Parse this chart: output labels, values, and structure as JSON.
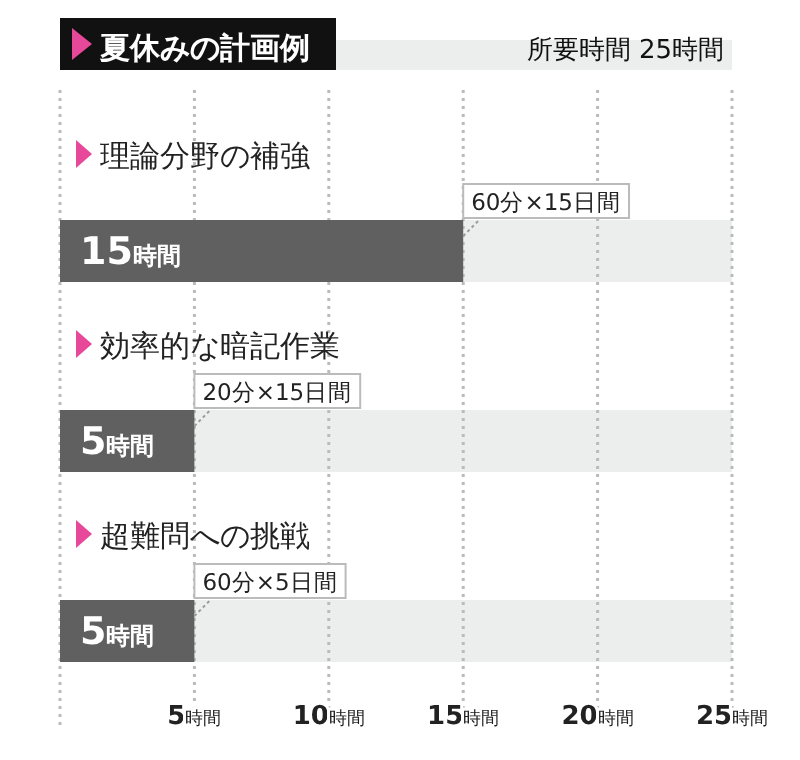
{
  "chart_data": {
    "type": "bar",
    "orientation": "horizontal",
    "title": "夏休みの計画例",
    "subtitle": "所要時間 25時間",
    "categories": [
      "理論分野の補強",
      "効率的な暗記作業",
      "超難問への挑戦"
    ],
    "values": [
      15,
      5,
      5
    ],
    "color": "#606060",
    "value_labels": [
      "15時間",
      "5時間",
      "5時間"
    ],
    "annotations": [
      "60分×15日間",
      "20分×15日間",
      "60分×5日間"
    ],
    "xlim": [
      0,
      25
    ],
    "xticks": [
      {
        "value": 5,
        "label": "5時間"
      },
      {
        "value": 10,
        "label": "10時間"
      },
      {
        "value": 15,
        "label": "15時間"
      },
      {
        "value": 20,
        "label": "20時間"
      },
      {
        "value": 25,
        "label": "25時間"
      }
    ],
    "grid": "x"
  }
}
